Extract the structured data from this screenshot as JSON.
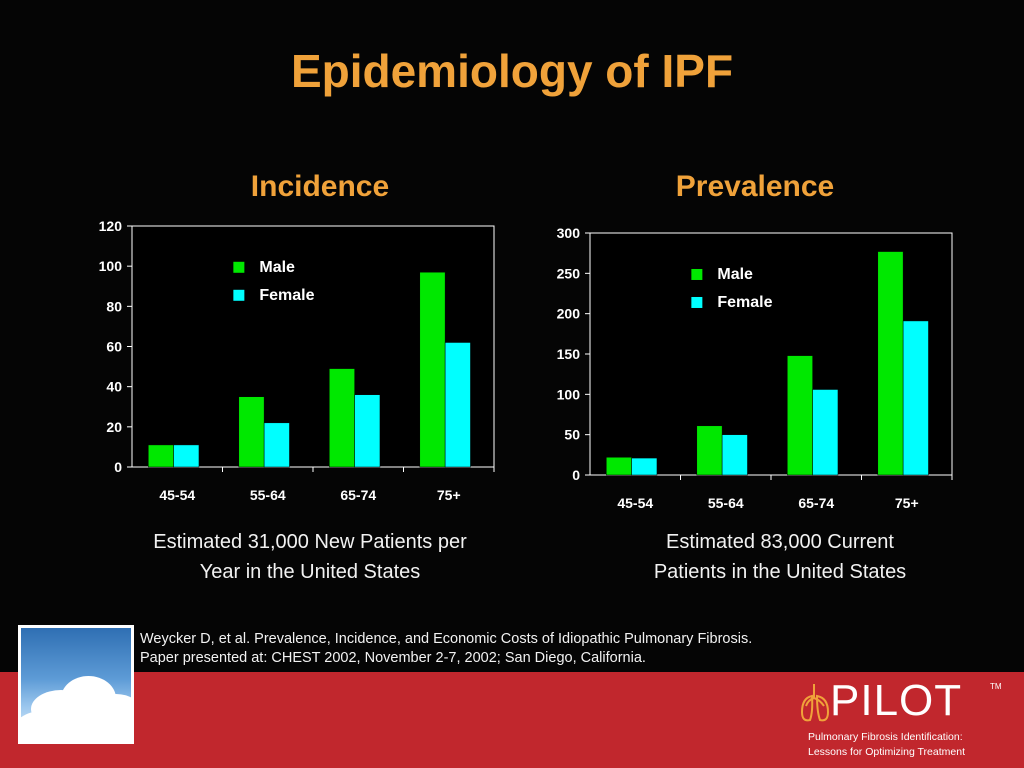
{
  "title": "Epidemiology of IPF",
  "chart_data": [
    {
      "type": "bar",
      "title": "Incidence",
      "categories": [
        "45-54",
        "55-64",
        "65-74",
        "75+"
      ],
      "series": [
        {
          "name": "Male",
          "values": [
            11,
            35,
            49,
            97
          ],
          "color": "#00e800"
        },
        {
          "name": "Female",
          "values": [
            11,
            22,
            36,
            62
          ],
          "color": "#00ffff"
        }
      ],
      "ylim": [
        0,
        120
      ],
      "yticks": [
        "0",
        "20",
        "40",
        "60",
        "80",
        "100",
        "120"
      ],
      "legend": "top-left",
      "grid": false,
      "caption": [
        "Estimated 31,000 New Patients per",
        "Year in the United States"
      ]
    },
    {
      "type": "bar",
      "title": "Prevalence",
      "categories": [
        "45-54",
        "55-64",
        "65-74",
        "75+"
      ],
      "series": [
        {
          "name": "Male",
          "values": [
            22,
            61,
            148,
            277
          ],
          "color": "#00e800"
        },
        {
          "name": "Female",
          "values": [
            21,
            50,
            106,
            191
          ],
          "color": "#00ffff"
        }
      ],
      "ylim": [
        0,
        300
      ],
      "yticks": [
        "0",
        "50",
        "100",
        "150",
        "200",
        "250",
        "300"
      ],
      "legend": "top-left",
      "grid": false,
      "caption": [
        "Estimated 83,000 Current",
        "Patients in the United States"
      ]
    }
  ],
  "reference": {
    "line1": "Weycker D, et al. Prevalence, Incidence, and Economic Costs of Idiopathic Pulmonary Fibrosis.",
    "line2": "Paper presented at: CHEST 2002, November 2-7, 2002; San Diego, California."
  },
  "logo": {
    "word": "PILOT",
    "tm": "TM",
    "tagline1": "Pulmonary Fibrosis Identification:",
    "tagline2": "Lessons for Optimizing Treatment"
  },
  "icons": {
    "logo_icon": "lungs-icon",
    "thumbnail": "sky-clouds-image"
  },
  "colors": {
    "title": "#f0a23a",
    "background": "#050505",
    "footer": "#c1272d"
  }
}
